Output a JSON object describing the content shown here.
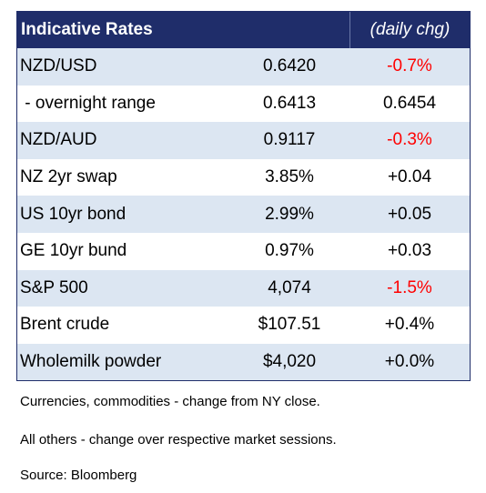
{
  "table": {
    "title": "Indicative Rates",
    "chg_header": "(daily chg)",
    "rows": [
      {
        "label": "NZD/USD",
        "value": "0.6420",
        "chg": "-0.7%"
      },
      {
        "label": " - overnight range",
        "value": "0.6413",
        "chg": "0.6454"
      },
      {
        "label": "NZD/AUD",
        "value": "0.9117",
        "chg": "-0.3%"
      },
      {
        "label": "NZ 2yr swap",
        "value": "3.85%",
        "chg": "+0.04"
      },
      {
        "label": "US 10yr bond",
        "value": "2.99%",
        "chg": "+0.05"
      },
      {
        "label": "GE 10yr bund",
        "value": "0.97%",
        "chg": "+0.03"
      },
      {
        "label": "S&P 500",
        "value": "4,074",
        "chg": "-1.5%"
      },
      {
        "label": "Brent crude",
        "value": "$107.51",
        "chg": "+0.4%"
      },
      {
        "label": "Wholemilk powder",
        "value": "$4,020",
        "chg": "+0.0%"
      }
    ]
  },
  "notes": {
    "note1": "Currencies, commodities - change from NY close.",
    "note2": "All others - change over respective market sessions.",
    "note3": "Source: Bloomberg"
  },
  "colors": {
    "header_bg": "#1f2d6a",
    "shaded_row": "#dce6f2",
    "negative": "#ff0000"
  }
}
